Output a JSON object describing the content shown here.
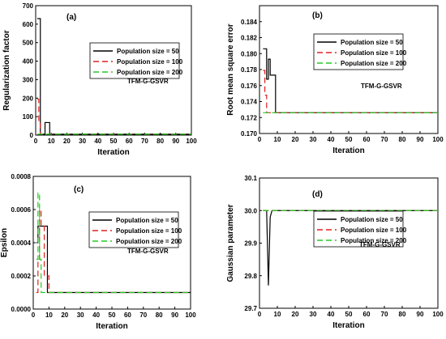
{
  "chart_data": [
    {
      "type": "line",
      "panel_label": "(a)",
      "xlabel": "Iteration",
      "ylabel": "Regularization factor",
      "xlim": [
        0,
        100
      ],
      "ylim": [
        0,
        700
      ],
      "xticks": [
        "0",
        "10",
        "20",
        "30",
        "40",
        "50",
        "60",
        "70",
        "80",
        "90",
        "100"
      ],
      "yticks": [
        "0",
        "100",
        "200",
        "300",
        "400",
        "500",
        "600",
        "700"
      ],
      "legend_placement": "right",
      "annotation": "TFM-G-GSVR",
      "series": [
        {
          "name": "Population size = 50",
          "color": "#000000",
          "dash": "solid",
          "x": [
            1,
            3,
            3,
            6,
            6,
            9,
            9,
            100
          ],
          "y": [
            630,
            630,
            5,
            5,
            68,
            68,
            5,
            5
          ]
        },
        {
          "name": "Population size = 100",
          "color": "#e02020",
          "dash": "long-dash",
          "x": [
            1,
            2,
            2,
            3,
            3,
            100
          ],
          "y": [
            195,
            195,
            70,
            70,
            5,
            5
          ]
        },
        {
          "name": "Population size = 200",
          "color": "#22cc22",
          "dash": "long-dash",
          "x": [
            1,
            100
          ],
          "y": [
            5,
            5
          ]
        }
      ]
    },
    {
      "type": "line",
      "panel_label": "(b)",
      "xlabel": "Iteration",
      "ylabel": "Root mean square error",
      "xlim": [
        0,
        100
      ],
      "ylim": [
        0.17,
        0.186
      ],
      "xticks": [
        "0",
        "10",
        "20",
        "30",
        "40",
        "50",
        "60",
        "70",
        "80",
        "90",
        "100"
      ],
      "yticks": [
        "0.170",
        "0.172",
        "0.174",
        "0.176",
        "0.178",
        "0.180",
        "0.182",
        "0.184"
      ],
      "legend_placement": "top-right",
      "annotation": "TFM-G-GSVR",
      "series": [
        {
          "name": "Population size = 50",
          "color": "#000000",
          "dash": "solid",
          "x": [
            2,
            4,
            4,
            5,
            5,
            6,
            6,
            7,
            7,
            8,
            8,
            9,
            9,
            100
          ],
          "y": [
            0.1806,
            0.1806,
            0.1768,
            0.1768,
            0.1793,
            0.1793,
            0.1773,
            0.1773,
            0.1773,
            0.1773,
            0.1773,
            0.1773,
            0.1726,
            0.1726
          ]
        },
        {
          "name": "Population size = 100",
          "color": "#e02020",
          "dash": "long-dash",
          "x": [
            2,
            3,
            3,
            4,
            4,
            100
          ],
          "y": [
            0.1779,
            0.1779,
            0.1748,
            0.1748,
            0.1726,
            0.1726
          ]
        },
        {
          "name": "Population size = 200",
          "color": "#22cc22",
          "dash": "long-dash",
          "x": [
            2,
            100
          ],
          "y": [
            0.1726,
            0.1726
          ]
        }
      ]
    },
    {
      "type": "line",
      "panel_label": "(c)",
      "xlabel": "Iteration",
      "ylabel": "Epsilon",
      "xlim": [
        0,
        100
      ],
      "ylim": [
        0,
        0.0008
      ],
      "xticks": [
        "0",
        "10",
        "20",
        "30",
        "40",
        "50",
        "60",
        "70",
        "80",
        "90",
        "100"
      ],
      "yticks": [
        "0.0000",
        "0.0002",
        "0.0004",
        "0.0006",
        "0.0008"
      ],
      "legend_placement": "top-right",
      "annotation": "TFM-G-GSVR",
      "series": [
        {
          "name": "Population size = 50",
          "color": "#000000",
          "dash": "solid",
          "x": [
            2,
            3,
            3,
            9,
            9,
            100
          ],
          "y": [
            0.0004,
            0.0004,
            0.0005,
            0.0005,
            0.0001,
            0.0001
          ]
        },
        {
          "name": "Population size = 100",
          "color": "#e02020",
          "dash": "long-dash",
          "x": [
            2,
            3,
            3,
            4,
            4,
            5,
            5,
            7,
            7,
            10,
            10,
            100
          ],
          "y": [
            0.0001,
            0.0001,
            0.0003,
            0.0003,
            0.0006,
            0.0006,
            0.0005,
            0.0005,
            0.0002,
            0.0002,
            0.0001,
            0.0001
          ]
        },
        {
          "name": "Population size = 200",
          "color": "#22cc22",
          "dash": "long-dash",
          "x": [
            2,
            3,
            3,
            4,
            4,
            5,
            5,
            100
          ],
          "y": [
            0.0003,
            0.0003,
            0.0007,
            0.0007,
            0.0003,
            0.0003,
            0.0001,
            0.0001
          ]
        }
      ]
    },
    {
      "type": "line",
      "panel_label": "(d)",
      "xlabel": "Iteration",
      "ylabel": "Gaussian parameter",
      "xlim": [
        0,
        100
      ],
      "ylim": [
        29.7,
        30.1
      ],
      "xticks": [
        "0",
        "10",
        "20",
        "30",
        "40",
        "50",
        "60",
        "70",
        "80",
        "90",
        "100"
      ],
      "yticks": [
        "29.7",
        "29.8",
        "29.9",
        "30.0",
        "30.1"
      ],
      "legend_placement": "right",
      "annotation": "TFM-G-GSVR",
      "series": [
        {
          "name": "Population size = 50",
          "color": "#000000",
          "dash": "solid",
          "x": [
            2,
            4,
            5,
            6,
            7,
            100
          ],
          "y": [
            30.0,
            30.0,
            29.77,
            29.98,
            30.0,
            30.0
          ]
        },
        {
          "name": "Population size = 100",
          "color": "#e02020",
          "dash": "long-dash",
          "x": [
            2,
            100
          ],
          "y": [
            30.0,
            30.0
          ]
        },
        {
          "name": "Population size = 200",
          "color": "#22cc22",
          "dash": "long-dash",
          "x": [
            2,
            100
          ],
          "y": [
            30.0,
            30.0
          ]
        }
      ]
    }
  ]
}
